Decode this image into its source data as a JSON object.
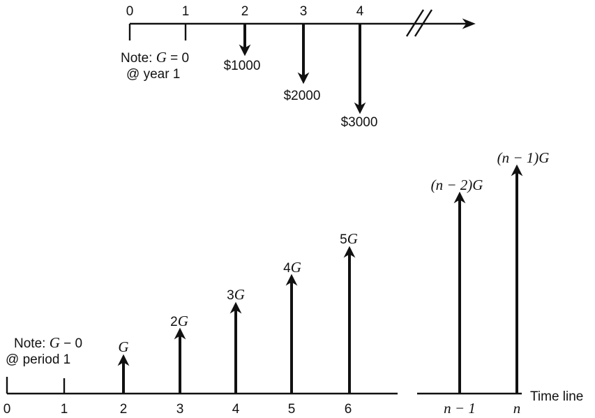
{
  "top": {
    "period_labels": [
      "0",
      "1",
      "2",
      "3",
      "4"
    ],
    "note_line1_prefix": "Note: ",
    "note_line1_var": "G",
    "note_line1_suffix": " = 0",
    "note_line2": "@ year 1",
    "cash_flows": [
      {
        "period": "2",
        "amount": "$1000"
      },
      {
        "period": "3",
        "amount": "$2000"
      },
      {
        "period": "4",
        "amount": "$3000"
      }
    ]
  },
  "bottom": {
    "note_line1_prefix": "Note: ",
    "note_line1_var": "G",
    "note_line1_suffix": " − 0",
    "note_line2": "@ period 1",
    "period_labels": [
      "0",
      "1",
      "2",
      "3",
      "4",
      "5",
      "6"
    ],
    "end_period_labels": [
      "n − 1",
      "n"
    ],
    "arrow_labels": [
      {
        "coef": "",
        "var": "G"
      },
      {
        "coef": "2",
        "var": "G"
      },
      {
        "coef": "3",
        "var": "G"
      },
      {
        "coef": "4",
        "var": "G"
      },
      {
        "coef": "5",
        "var": "G"
      }
    ],
    "end_arrow_labels": [
      "(n − 2)G",
      "(n − 1)G"
    ],
    "axis_label": "Time line"
  }
}
